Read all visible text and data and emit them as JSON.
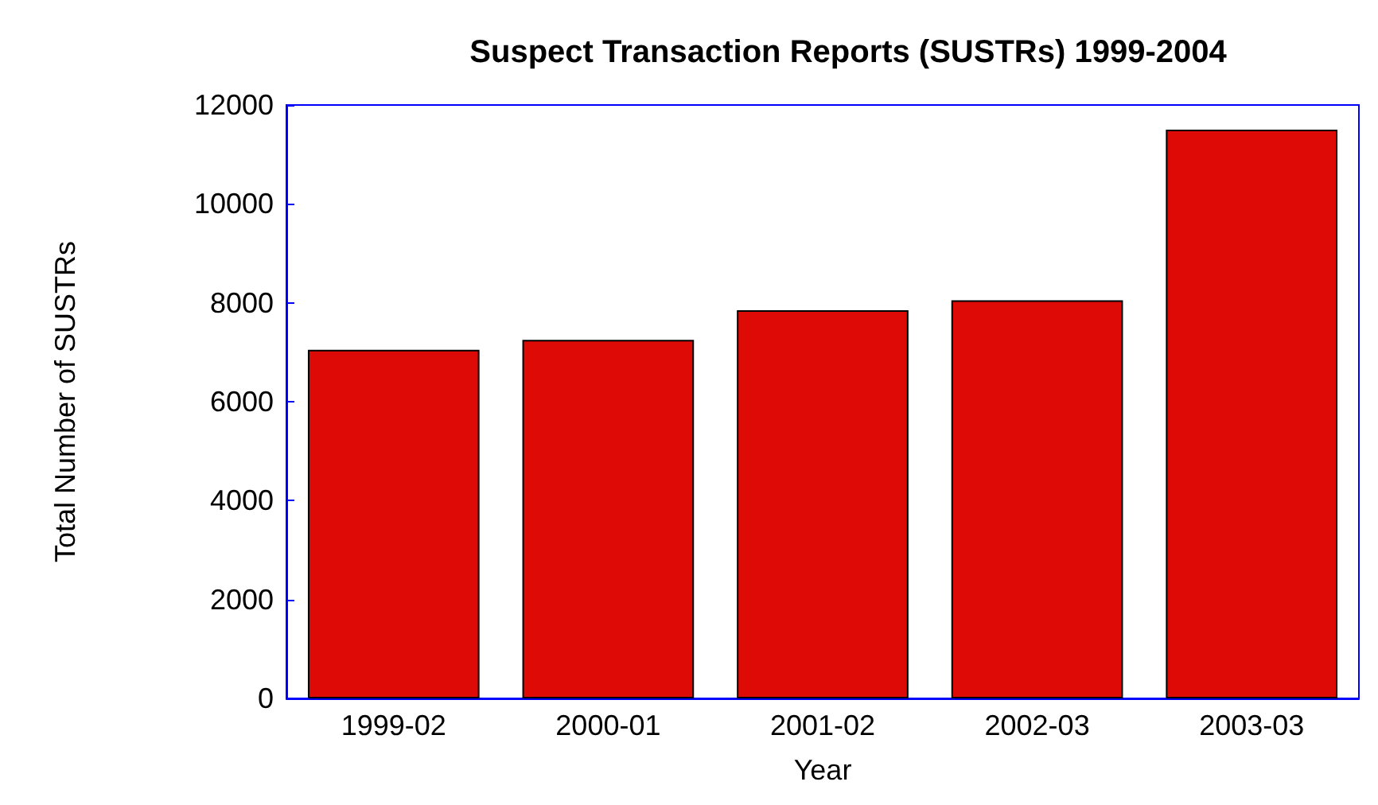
{
  "chart_data": {
    "type": "bar",
    "title": "Suspect Transaction Reports (SUSTRs) 1999-2004",
    "xlabel": "Year",
    "ylabel": "Total Number of SUSTRs",
    "categories": [
      "1999-02",
      "2000-01",
      "2001-02",
      "2002-03",
      "2003-03"
    ],
    "values": [
      7050,
      7250,
      7850,
      8050,
      11500
    ],
    "color": "#dd0a06",
    "ylim": [
      0,
      12000
    ],
    "yticks": [
      0,
      2000,
      4000,
      6000,
      8000,
      10000,
      12000
    ],
    "grid": false
  }
}
